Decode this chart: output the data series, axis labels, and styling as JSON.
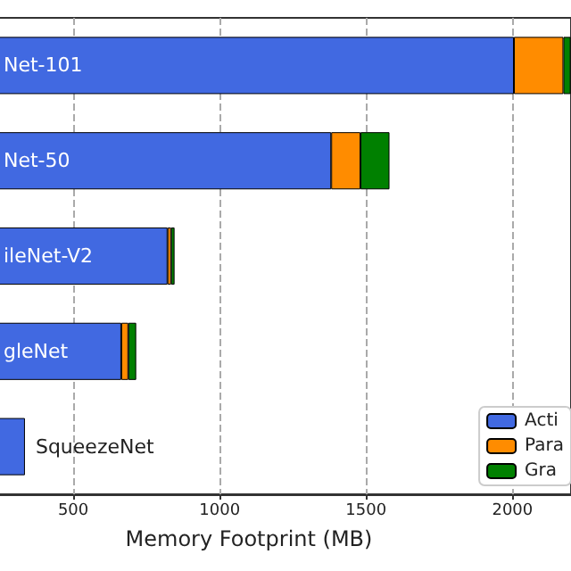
{
  "chart_data": {
    "type": "bar",
    "orientation": "horizontal",
    "stacked": true,
    "categories": [
      "Net-101",
      "Net-50",
      "ileNet-V2",
      "gleNet",
      "SqueezeNet"
    ],
    "series": [
      {
        "name": "Acti",
        "color": "#4169e1",
        "values": [
          2005,
          1381,
          822,
          664,
          335
        ]
      },
      {
        "name": "Para",
        "color": "#ff8c00",
        "values": [
          169,
          100,
          12,
          24,
          null
        ]
      },
      {
        "name": "Gra",
        "color": "#008000",
        "values": [
          25,
          99,
          12,
          27,
          null
        ]
      }
    ],
    "xlim": [
      0,
      2200
    ],
    "xticks": [
      500,
      1000,
      1500,
      2000
    ],
    "xlabel": "Memory Footprint (MB)",
    "grid": "x",
    "legend": "bottom right"
  }
}
